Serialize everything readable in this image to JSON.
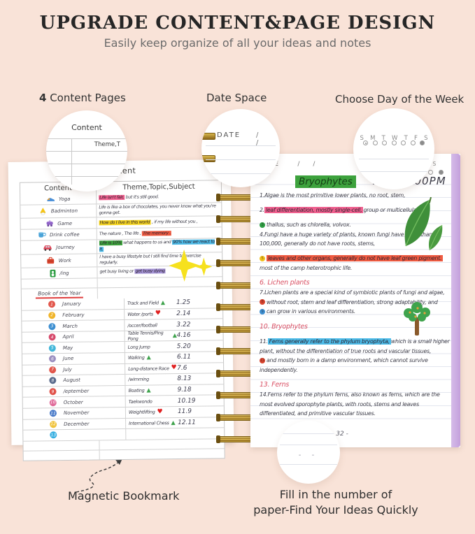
{
  "header": {
    "title": "UPGRADE CONTENT&PAGE DESIGN",
    "subtitle": "Easily keep organize of all your ideas and notes"
  },
  "callouts": {
    "content_pages_number": "4",
    "content_pages_label": " Content Pages",
    "date_space": "Date Space",
    "choose_day": "Choose Day of the Week",
    "magnetic_bookmark": "Magnetic Bookmark",
    "fill_line1": "Fill in the number of",
    "fill_line2": "paper-Find Your Ideas Quickly"
  },
  "magnifier_content": {
    "title": "Content",
    "fragment": "Theme,T"
  },
  "magnifier_date": {
    "label": "DATE",
    "sep": "/  /"
  },
  "magnifier_week": {
    "days": [
      "S",
      "M",
      "T",
      "W",
      "T",
      "F",
      "S"
    ]
  },
  "left_page": {
    "page_title": "Content",
    "col1_header": "Content",
    "col2_header": "Theme,Topic,Subject",
    "activities": [
      {
        "icon": "yoga-icon",
        "name": "Yoga",
        "segments": [
          {
            "t": "Life isn't fair,",
            "hl": "pink"
          },
          {
            "t": " but it's still good."
          }
        ]
      },
      {
        "icon": "badminton-icon",
        "name": "Badminton",
        "segments": [
          {
            "t": "Life is like a box of chocolates, you never know what you're gonna get."
          }
        ]
      },
      {
        "icon": "game-icon",
        "name": "Game",
        "segments": [
          {
            "t": "How do I live in this world",
            "hl": "yellow"
          },
          {
            "t": " , if my life without you ,"
          }
        ]
      },
      {
        "icon": "drink-coffee-icon",
        "name": "Drink coffee",
        "segments": [
          {
            "t": "The nature , The life , "
          },
          {
            "t": "The memory .",
            "hl": "red"
          }
        ]
      },
      {
        "icon": "journey-icon",
        "name": "Journey",
        "segments": [
          {
            "t": "Life is 10%",
            "hl": "green"
          },
          {
            "t": " what happens to us and "
          },
          {
            "t": "90% how we react to it.",
            "hl": "blue"
          }
        ]
      },
      {
        "icon": "work-icon",
        "name": "Work",
        "segments": [
          {
            "t": "I have a busy lifestyle but I still find time to exercise regularly."
          }
        ]
      },
      {
        "icon": "sing-icon",
        "name": "/ing",
        "segments": [
          {
            "t": "get busy living or "
          },
          {
            "t": "get busy dying",
            "hl": "purple"
          }
        ]
      }
    ],
    "book_of_year": "Book of the Year",
    "months": [
      {
        "num": "1",
        "color": "#e2574c",
        "name": "January",
        "activity": "Track and Field",
        "symbol": "triangle",
        "date": "1.25"
      },
      {
        "num": "2",
        "color": "#f0b429",
        "name": "February",
        "activity": "Water /ports",
        "symbol": "heart",
        "date": "2.14"
      },
      {
        "num": "3",
        "color": "#3d8fd1",
        "name": "March",
        "activity": "/occer/football",
        "symbol": "",
        "date": "3.22"
      },
      {
        "num": "4",
        "color": "#d6496b",
        "name": "April",
        "activity": "Table Tennis/Ping Pong",
        "symbol": "triangle",
        "date": "4.16"
      },
      {
        "num": "5",
        "color": "#41b6d9",
        "name": "May",
        "activity": "Long Jump",
        "symbol": "",
        "date": "5.20"
      },
      {
        "num": "6",
        "color": "#9b8fc0",
        "name": "June",
        "activity": "Walking",
        "symbol": "triangle",
        "date": "6.11"
      },
      {
        "num": "7",
        "color": "#e2574c",
        "name": "July",
        "activity": "Long-distance Race",
        "symbol": "heart",
        "date": "7.6"
      },
      {
        "num": "8",
        "color": "#5a6b8c",
        "name": "August",
        "activity": "/wimming",
        "symbol": "",
        "date": "8.13"
      },
      {
        "num": "9",
        "color": "#e0524a",
        "name": "/eptember",
        "activity": "Boating",
        "symbol": "triangle",
        "date": "9.18"
      },
      {
        "num": "10",
        "color": "#e06b9a",
        "name": "October",
        "activity": "Taekwondo",
        "symbol": "",
        "date": "10.19"
      },
      {
        "num": "11",
        "color": "#4a7bc9",
        "name": "November",
        "activity": "Weightlifting",
        "symbol": "heart",
        "date": "11.9"
      },
      {
        "num": "12",
        "color": "#f0c33c",
        "name": "December",
        "activity": "International Chess",
        "symbol": "triangle",
        "date": "12.11"
      }
    ],
    "extra_row": {
      "num": "13",
      "color": "#35aee0"
    }
  },
  "right_page": {
    "date_label": "DATE",
    "date_sep": "/  /",
    "week_days": [
      "T",
      "F",
      "S"
    ],
    "title": "Bryophytes",
    "datetime": "3.28 5:00PM",
    "page_number": "- 32 -",
    "magnifier_dash": "- -",
    "lines": [
      {
        "seg": [
          {
            "t": "1.Algae is the most primitive lower plants, no root, stem,"
          }
        ]
      },
      {
        "blank": true
      },
      {
        "seg": [
          {
            "t": "2. "
          },
          {
            "t": "leaf differentiation, mostly single-cell,",
            "hl": "pink"
          },
          {
            "t": " group or multicellular"
          }
        ]
      },
      {
        "blank": true
      },
      {
        "seg": [
          {
            "b": "3",
            "bc": "#2e9e44"
          },
          {
            "t": "thallus, such as chlorella, volvox."
          }
        ]
      },
      {
        "seg": [
          {
            "t": "4.Fungi have a huge variety of plants, known fungi have more than"
          }
        ]
      },
      {
        "seg": [
          {
            "t": "100,000, generally do not have roots, stems,"
          }
        ]
      },
      {
        "blank": true
      },
      {
        "seg": [
          {
            "b": "5",
            "bc": "#f2c01d"
          },
          {
            "t": "leaves and other organs, generally do not have leaf green pigment.",
            "hl": "red"
          }
        ]
      },
      {
        "seg": [
          {
            "t": "most of the camp heterotrophic life."
          }
        ]
      },
      {
        "blank": true
      },
      {
        "heading": "6. Lichen plants"
      },
      {
        "seg": [
          {
            "t": "7.Lichen plants are a special kind of symbiotic plants of fungi and algae,"
          }
        ]
      },
      {
        "seg": [
          {
            "b": "8",
            "bc": "#d9442e"
          },
          {
            "t": "without root, stem and leaf differentiation, strong adaptability, and"
          }
        ]
      },
      {
        "seg": [
          {
            "b": "9",
            "bc": "#3d8fd1"
          },
          {
            "t": "can grow in various environments."
          }
        ]
      },
      {
        "blank": true
      },
      {
        "heading": "10. Bryophytes"
      },
      {
        "blank": true
      },
      {
        "seg": [
          {
            "t": "11."
          },
          {
            "t": "Ferns generally refer to the phylum bryophyta,",
            "hl": "blue"
          },
          {
            "t": " which is a small higher"
          }
        ]
      },
      {
        "seg": [
          {
            "t": "plant, without the differentiation of true roots and vascular tissues,"
          }
        ]
      },
      {
        "seg": [
          {
            "b": "12",
            "bc": "#d9442e"
          },
          {
            "t": "and mostly born in a damp environment, which cannot survive"
          }
        ]
      },
      {
        "seg": [
          {
            "t": "independently."
          }
        ]
      },
      {
        "blank": true
      },
      {
        "heading": "13. Ferns"
      },
      {
        "seg": [
          {
            "t": "14.Ferns refer to the phylum ferns, also known as ferns, which are the"
          }
        ]
      },
      {
        "seg": [
          {
            "t": "most evolved sporophyte plants, with roots, stems and leaves"
          }
        ]
      },
      {
        "seg": [
          {
            "t": "differentiated, and primitive vascular tissues."
          }
        ]
      }
    ]
  },
  "colors": {
    "background": "#f9e3d8",
    "highlight_pink": "#f0608f",
    "highlight_yellow": "#f5d41e",
    "highlight_red": "#ef5a40",
    "highlight_green": "#3da23d",
    "highlight_blue": "#4cbbe8",
    "highlight_purple": "#a493d6",
    "heading_red": "#d94f63",
    "cover_lavender": "#c3a0dc",
    "spiral_gold": "#b8923a"
  }
}
